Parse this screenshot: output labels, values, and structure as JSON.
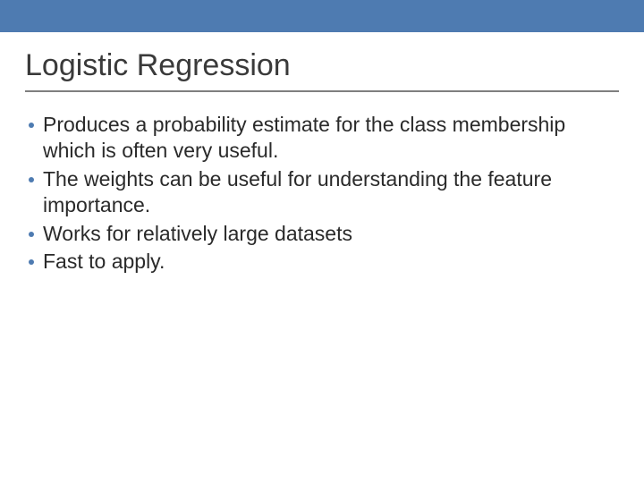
{
  "theme": {
    "top_bar_color": "#4e7bb1",
    "title_color": "#3a3a3a",
    "title_fontsize": 34,
    "title_underline_color": "#7f7f7f",
    "body_text_color": "#2a2a2a",
    "body_fontsize": 23,
    "bullet_color": "#4e7bb1",
    "background_color": "#ffffff"
  },
  "slide": {
    "title": "Logistic Regression",
    "bullets": [
      "Produces a probability estimate for the class membership which is often very useful.",
      "The weights can be useful for understanding the feature importance.",
      "Works for relatively large datasets",
      "Fast to apply."
    ]
  }
}
